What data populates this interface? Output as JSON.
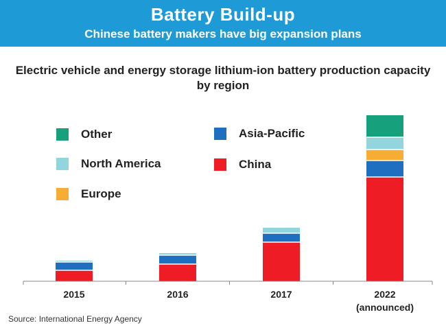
{
  "header": {
    "title": "Battery Build-up",
    "subtitle": "Chinese battery makers have big expansion plans"
  },
  "chart_data": {
    "type": "bar",
    "stacked": true,
    "title": "Electric vehicle and energy storage lithium-ion battery production capacity by region",
    "categories": [
      [
        "2015"
      ],
      [
        "2016"
      ],
      [
        "2017"
      ],
      [
        "2022",
        "(announced)"
      ]
    ],
    "series": [
      {
        "name": "China",
        "color": "#ee1c25",
        "values": [
          16,
          25,
          57,
          152
        ]
      },
      {
        "name": "Asia-Pacific",
        "color": "#1f6fc0",
        "values": [
          12,
          13,
          13,
          24
        ]
      },
      {
        "name": "Europe",
        "color": "#f7ac34",
        "values": [
          0,
          0,
          0,
          16
        ]
      },
      {
        "name": "North America",
        "color": "#93d5dc",
        "values": [
          2,
          3,
          8,
          18
        ]
      },
      {
        "name": "Other",
        "color": "#16a07c",
        "values": [
          0,
          0,
          0,
          32
        ]
      }
    ],
    "legend": {
      "placement": "top-left",
      "order": [
        "Other",
        "Asia-Pacific",
        "North America",
        "China",
        "Europe"
      ]
    },
    "ylim": [
      0,
      250
    ],
    "grid": false
  },
  "source": "Source:  International Energy Agency"
}
